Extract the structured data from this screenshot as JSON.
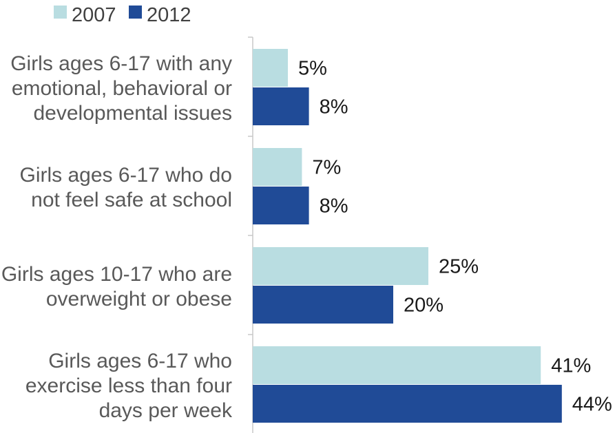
{
  "chart_data": {
    "type": "bar",
    "orientation": "horizontal",
    "title": "",
    "xlabel": "",
    "ylabel": "",
    "xlim": [
      0,
      44
    ],
    "grid": false,
    "legend_position": "top-left",
    "categories": [
      "Girls ages 6-17 with any emotional, behavioral or developmental issues",
      "Girls ages 6-17 who do not feel safe at school",
      "Girls ages 10-17 who are overweight or obese",
      "Girls ages 6-17 who exercise less than four days per week"
    ],
    "category_label_lines": [
      [
        "Girls ages 6-17 with any",
        "emotional, behavioral or",
        "developmental issues"
      ],
      [
        "Girls ages 6-17 who do",
        "not feel safe at school"
      ],
      [
        "Girls ages 10-17 who are",
        "overweight or obese"
      ],
      [
        "Girls ages 6-17 who",
        "exercise less than four",
        "days per week"
      ]
    ],
    "series": [
      {
        "name": "2007",
        "color": "#b9dde1",
        "values": [
          5,
          7,
          25,
          41
        ],
        "labels": [
          "5%",
          "7%",
          "25%",
          "41%"
        ]
      },
      {
        "name": "2012",
        "color": "#204b97",
        "values": [
          8,
          8,
          20,
          44
        ],
        "labels": [
          "8%",
          "8%",
          "20%",
          "44%"
        ]
      }
    ]
  }
}
